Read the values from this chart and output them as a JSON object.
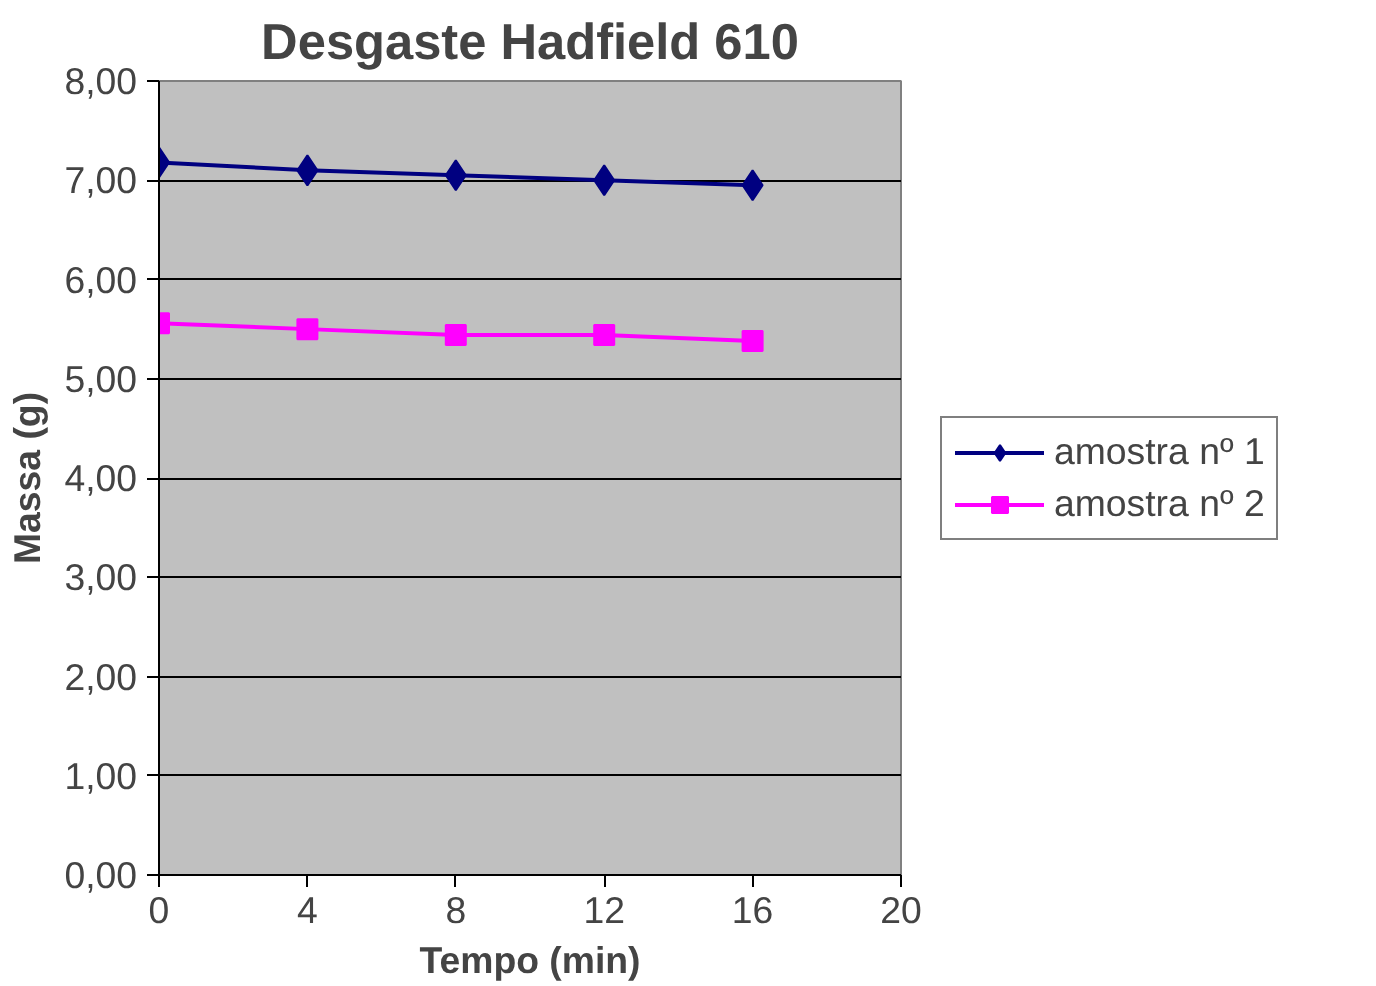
{
  "chart_data": {
    "type": "line",
    "title": "Desgaste Hadfield 610",
    "xlabel": "Tempo (min)",
    "ylabel": "Massa (g)",
    "x": [
      0,
      4,
      8,
      12,
      16
    ],
    "series": [
      {
        "name": "amostra nº 1",
        "color": "#000080",
        "marker": "diamond",
        "values": [
          7.18,
          7.1,
          7.05,
          7.0,
          6.95
        ]
      },
      {
        "name": "amostra nº 2",
        "color": "#ff00ff",
        "marker": "square",
        "values": [
          5.56,
          5.5,
          5.44,
          5.44,
          5.38
        ]
      }
    ],
    "xlim": [
      0,
      20
    ],
    "xticks": [
      0,
      4,
      8,
      12,
      16,
      20
    ],
    "ylim": [
      0,
      8
    ],
    "yticks": [
      {
        "value": 0,
        "label": "0,00"
      },
      {
        "value": 1,
        "label": "1,00"
      },
      {
        "value": 2,
        "label": "2,00"
      },
      {
        "value": 3,
        "label": "3,00"
      },
      {
        "value": 4,
        "label": "4,00"
      },
      {
        "value": 5,
        "label": "5,00"
      },
      {
        "value": 6,
        "label": "6,00"
      },
      {
        "value": 7,
        "label": "7,00"
      },
      {
        "value": 8,
        "label": "8,00"
      }
    ],
    "grid": "y",
    "legend": "right",
    "line_style": "solid"
  }
}
